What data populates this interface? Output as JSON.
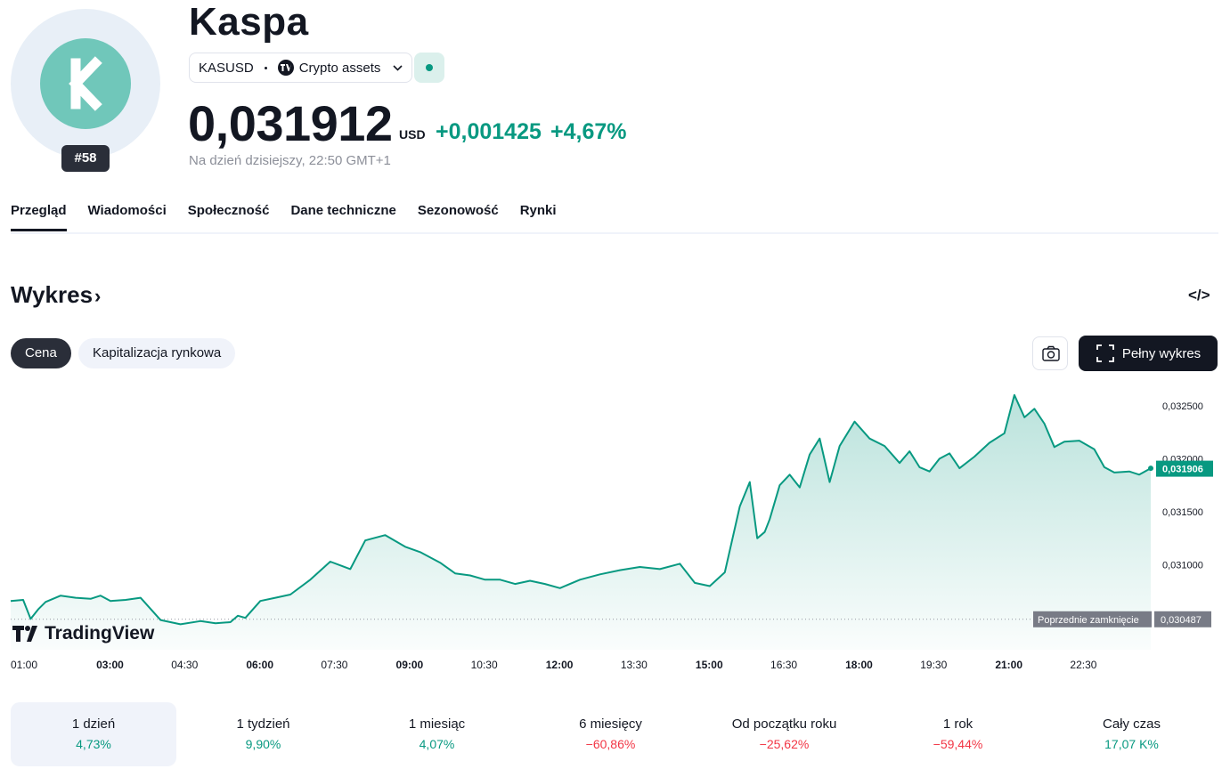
{
  "header": {
    "title": "Kaspa",
    "rank": "#58",
    "symbol": "KASUSD",
    "exchange": "Crypto assets",
    "price": "0,031912",
    "currency": "USD",
    "change": "+0,001425",
    "change_pct": "+4,67%",
    "as_of": "Na dzień dzisiejszy, 22:50 GMT+1",
    "positive_color": "#089981"
  },
  "tabs": [
    {
      "label": "Przegląd"
    },
    {
      "label": "Wiadomości"
    },
    {
      "label": "Społeczność"
    },
    {
      "label": "Dane techniczne"
    },
    {
      "label": "Sezonowość"
    },
    {
      "label": "Rynki"
    }
  ],
  "chart_section": {
    "title": "Wykres",
    "embed_icon": "code-icon",
    "segment_price": "Cena",
    "segment_cap": "Kapitalizacja rynkowa",
    "camera_icon": "camera-icon",
    "full_chart_label": "Pełny wykres",
    "brand": "TradingView"
  },
  "chart_data": {
    "type": "area",
    "x_ticks": [
      "01:00",
      "03:00",
      "04:30",
      "06:00",
      "07:30",
      "09:00",
      "10:30",
      "12:00",
      "13:30",
      "15:00",
      "16:30",
      "18:00",
      "19:30",
      "21:00",
      "22:30"
    ],
    "bold_ticks": [
      "03:00",
      "06:00",
      "09:00",
      "12:00",
      "15:00",
      "18:00",
      "21:00"
    ],
    "y_ticks": [
      "0,032500",
      "0,032000",
      "0,031500",
      "0,031000"
    ],
    "ylim": [
      0.0302,
      0.0328
    ],
    "current_value": "0,031906",
    "previous_close_label": "Poprzednie zamknięcie",
    "previous_close_value": "0,030487",
    "x_hours": [
      0.0,
      0.25,
      0.4,
      0.55,
      0.7,
      1.0,
      1.3,
      1.6,
      1.8,
      2.0,
      2.3,
      2.6,
      3.0,
      3.4,
      3.8,
      4.1,
      4.4,
      4.55,
      4.7,
      5.0,
      5.3,
      5.6,
      6.0,
      6.4,
      6.8,
      7.1,
      7.5,
      7.9,
      8.2,
      8.6,
      8.9,
      9.2,
      9.5,
      9.8,
      10.1,
      10.4,
      10.7,
      11.0,
      11.4,
      11.8,
      12.2,
      12.6,
      13.0,
      13.4,
      13.7,
      14.0,
      14.3,
      14.6,
      14.8,
      14.95,
      15.1,
      15.2,
      15.4,
      15.6,
      15.8,
      16.0,
      16.2,
      16.4,
      16.6,
      16.9,
      17.2,
      17.5,
      17.8,
      18.0,
      18.2,
      18.4,
      18.6,
      18.8,
      19.0,
      19.3,
      19.6,
      19.9,
      20.1,
      20.3,
      20.5,
      20.7,
      20.9,
      21.1,
      21.4,
      21.7,
      21.9,
      22.1,
      22.4,
      22.6,
      22.83
    ],
    "values": [
      0.03066,
      0.03067,
      0.03049,
      0.03058,
      0.03065,
      0.03071,
      0.03069,
      0.03068,
      0.03071,
      0.03066,
      0.03067,
      0.03069,
      0.03048,
      0.03044,
      0.03047,
      0.03045,
      0.03046,
      0.03052,
      0.0305,
      0.03066,
      0.03069,
      0.03072,
      0.03086,
      0.03103,
      0.03096,
      0.03123,
      0.03128,
      0.03117,
      0.03112,
      0.03102,
      0.03092,
      0.0309,
      0.03086,
      0.03086,
      0.03082,
      0.03085,
      0.03082,
      0.03078,
      0.03086,
      0.03091,
      0.03095,
      0.03098,
      0.03096,
      0.03101,
      0.03083,
      0.0308,
      0.03093,
      0.03155,
      0.03178,
      0.03125,
      0.03131,
      0.03143,
      0.03175,
      0.03185,
      0.03173,
      0.03204,
      0.03219,
      0.03178,
      0.03212,
      0.03235,
      0.03219,
      0.03212,
      0.03196,
      0.03207,
      0.03192,
      0.03188,
      0.032,
      0.03205,
      0.03191,
      0.03202,
      0.03215,
      0.03224,
      0.0326,
      0.03239,
      0.03247,
      0.03233,
      0.03211,
      0.03216,
      0.03217,
      0.03209,
      0.03192,
      0.03187,
      0.03188,
      0.03185,
      0.03191
    ]
  },
  "performance": [
    {
      "label": "1 dzień",
      "value": "4,73%",
      "trend": "pos"
    },
    {
      "label": "1 tydzień",
      "value": "9,90%",
      "trend": "pos"
    },
    {
      "label": "1 miesiąc",
      "value": "4,07%",
      "trend": "pos"
    },
    {
      "label": "6 miesięcy",
      "value": "−60,86%",
      "trend": "neg"
    },
    {
      "label": "Od początku roku",
      "value": "−25,62%",
      "trend": "neg"
    },
    {
      "label": "1 rok",
      "value": "−59,44%",
      "trend": "neg"
    },
    {
      "label": "Cały czas",
      "value": "17,07 K%",
      "trend": "pos"
    }
  ]
}
